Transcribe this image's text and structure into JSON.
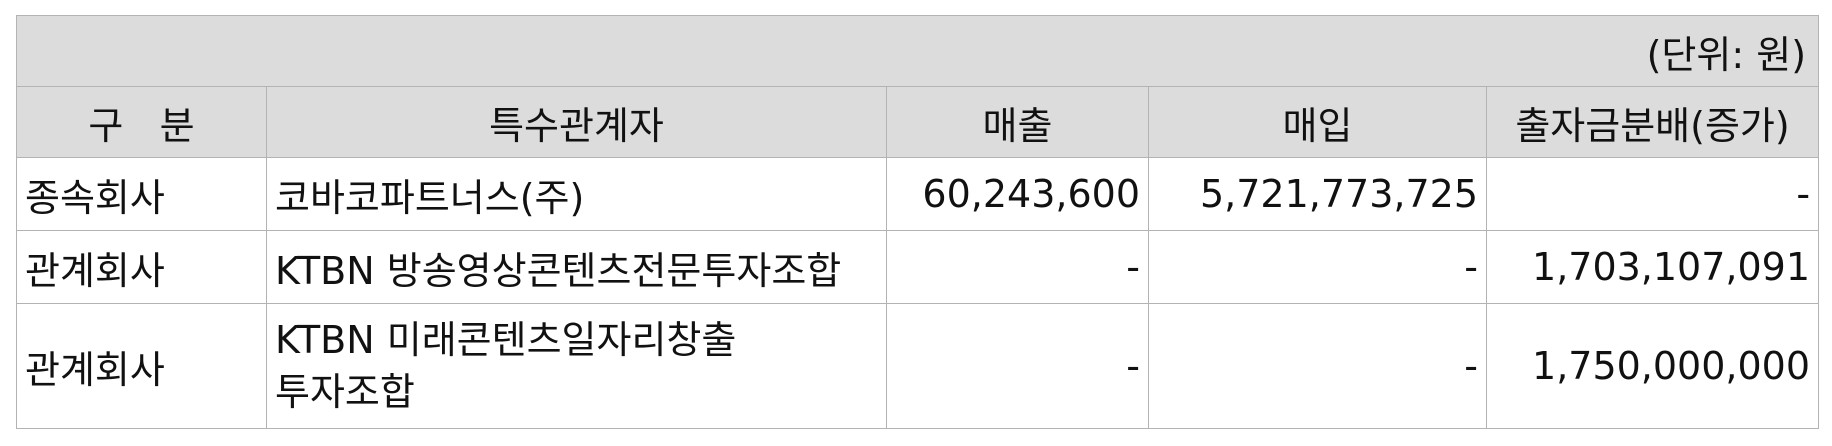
{
  "unit": "(단위: 원)",
  "headers": [
    "구   분",
    "특수관계자",
    "매출",
    "매입",
    "출자금분배(증가)"
  ],
  "rows": [
    {
      "category": "종속회사",
      "party_lines": [
        "코바코파트너스(주)"
      ],
      "sales": "60,243,600",
      "purchase": "5,721,773,725",
      "distribution": "-"
    },
    {
      "category": "관계회사",
      "party_lines": [
        "KTBN 방송영상콘텐츠전문투자조합"
      ],
      "sales": "-",
      "purchase": "-",
      "distribution": "1,703,107,091"
    },
    {
      "category": "관계회사",
      "party_lines": [
        "KTBN 미래콘텐츠일자리창출",
        "투자조합"
      ],
      "sales": "-",
      "purchase": "-",
      "distribution": "1,750,000,000"
    }
  ]
}
